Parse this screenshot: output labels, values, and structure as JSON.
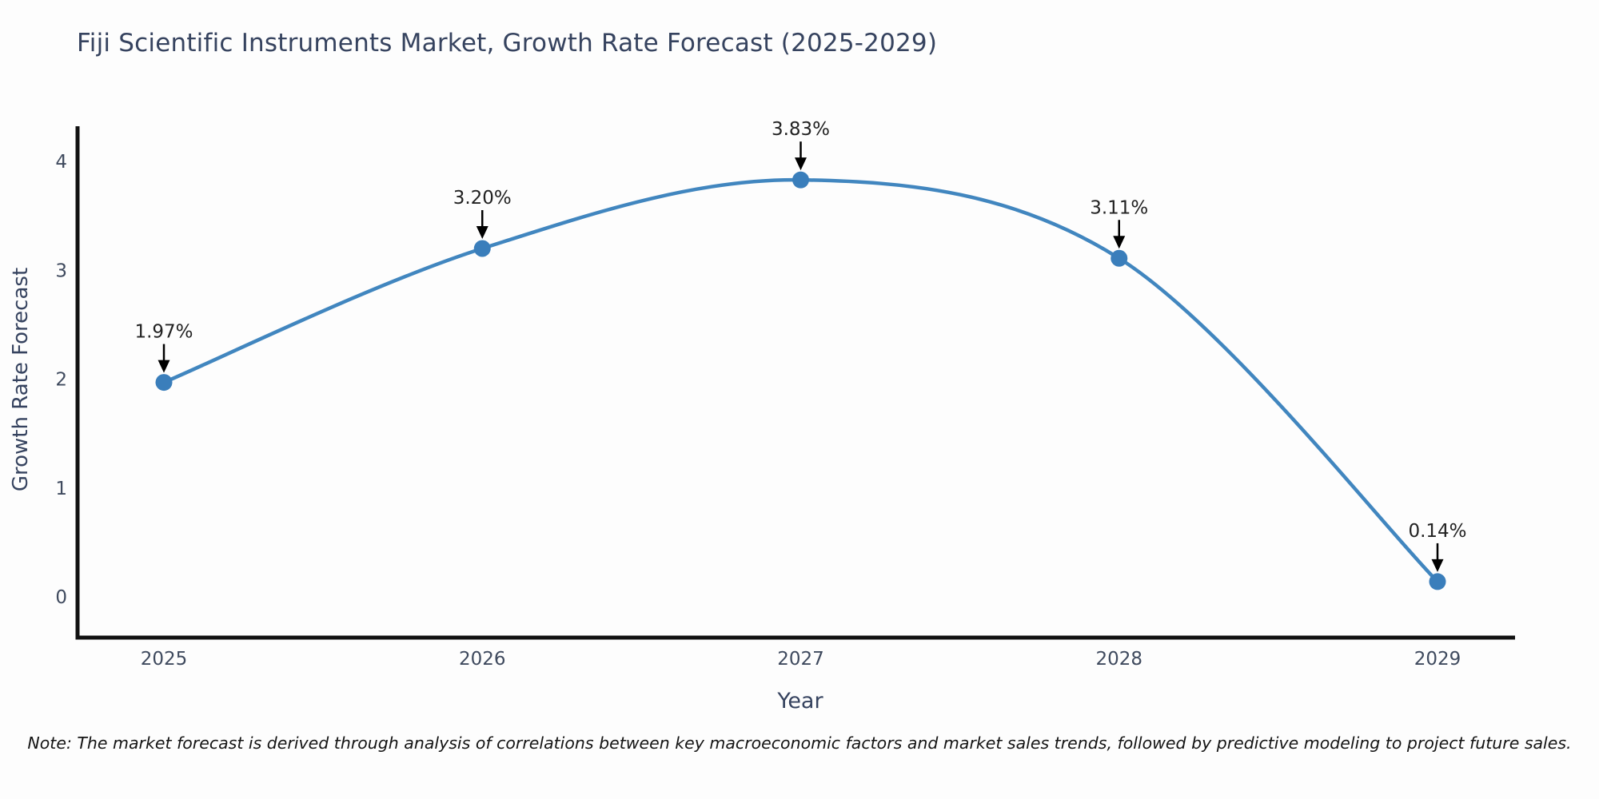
{
  "title": "Fiji Scientific Instruments Market, Growth Rate Forecast (2025-2029)",
  "note": "Note: The market forecast is derived through analysis of correlations between key macroeconomic factors and market sales trends, followed by predictive modeling to project future sales.",
  "chart_data": {
    "type": "line",
    "x": [
      2025,
      2026,
      2027,
      2028,
      2029
    ],
    "values": [
      1.97,
      3.2,
      3.83,
      3.11,
      0.14
    ],
    "point_labels": [
      "1.97%",
      "3.20%",
      "3.83%",
      "3.11%",
      "0.14%"
    ],
    "title": "Fiji Scientific Instruments Market, Growth Rate Forecast (2025-2029)",
    "xlabel": "Year",
    "ylabel": "Growth Rate Forecast",
    "yticks": [
      0,
      1,
      2,
      3,
      4
    ],
    "ylim": [
      0,
      4.7
    ],
    "grid": false,
    "legend": "none",
    "annotations": "value labels with down arrows above each point",
    "colors": {
      "line": "#4186bf",
      "marker": "#3a7ebb",
      "arrow": "#000000",
      "axis": "#111111",
      "title": "#36435f",
      "axis_label": "#36435f",
      "tick_label": "#3f4a5e",
      "annotation_text": "#222222",
      "note_text": "#141414"
    }
  }
}
